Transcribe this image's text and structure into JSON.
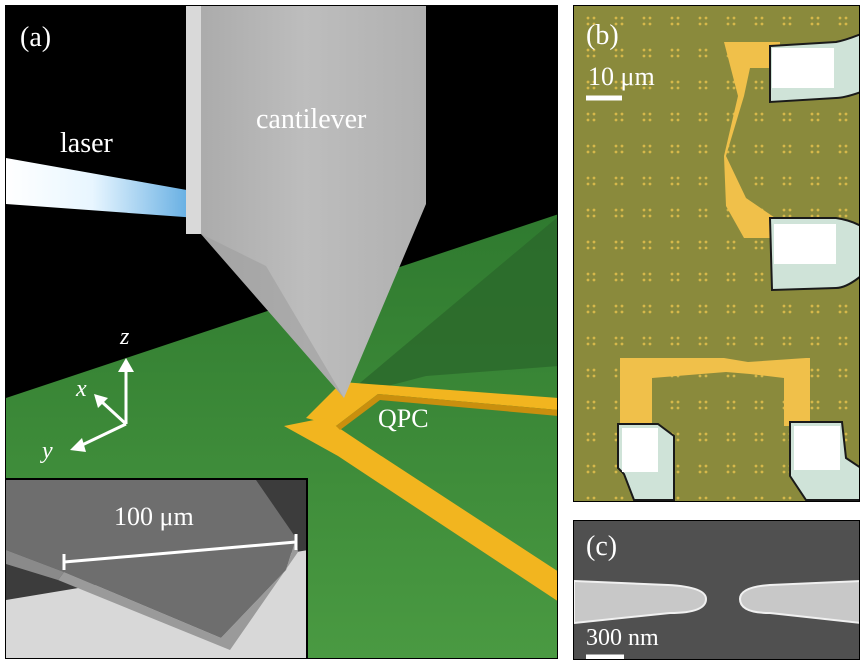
{
  "panel_a": {
    "label": "(a)",
    "cantilever_label": "cantilever",
    "laser_label": "laser",
    "qpc_label": "QPC",
    "axes": {
      "z": "z",
      "x": "x",
      "y": "y"
    },
    "inset": {
      "scale_label": "100 μm"
    },
    "colors": {
      "substrate": "#3f8a3a",
      "gates": "#f0b41c",
      "cantilever": "#b3b3b3"
    }
  },
  "panel_b": {
    "label": "(b)",
    "scale_label": "10 μm",
    "colors": {
      "substrate": "#8a8a3c",
      "gold": "#f0c04a",
      "pads": "#cfe3d8"
    }
  },
  "panel_c": {
    "label": "(c)",
    "scale_label": "300 nm"
  }
}
